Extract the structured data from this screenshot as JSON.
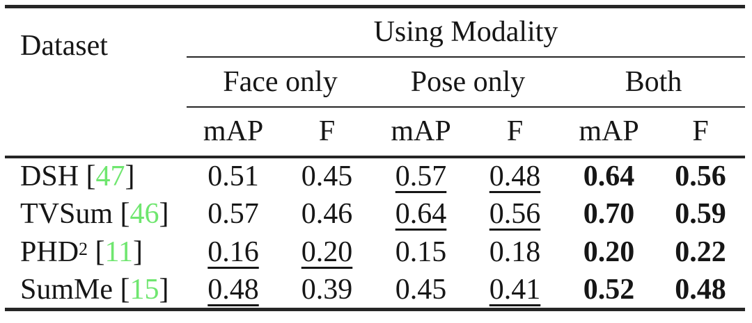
{
  "table": {
    "columns": {
      "dataset_header": "Dataset",
      "modality_header": "Using Modality",
      "groups": [
        {
          "label": "Face only"
        },
        {
          "label": "Pose only"
        },
        {
          "label": "Both"
        }
      ],
      "metrics": [
        "mAP",
        "F",
        "mAP",
        "F",
        "mAP",
        "F"
      ]
    },
    "punctuation": {
      "cite_open": " [",
      "cite_close": "]"
    },
    "rows": [
      {
        "dataset": "DSH",
        "superscript": "",
        "citation": "47",
        "cells": [
          {
            "value": "0.51",
            "emphasis": "none"
          },
          {
            "value": "0.45",
            "emphasis": "none"
          },
          {
            "value": "0.57",
            "emphasis": "underline"
          },
          {
            "value": "0.48",
            "emphasis": "underline"
          },
          {
            "value": "0.64",
            "emphasis": "bold"
          },
          {
            "value": "0.56",
            "emphasis": "bold"
          }
        ]
      },
      {
        "dataset": "TVSum",
        "superscript": "",
        "citation": "46",
        "cells": [
          {
            "value": "0.57",
            "emphasis": "none"
          },
          {
            "value": "0.46",
            "emphasis": "none"
          },
          {
            "value": "0.64",
            "emphasis": "underline"
          },
          {
            "value": "0.56",
            "emphasis": "underline"
          },
          {
            "value": "0.70",
            "emphasis": "bold"
          },
          {
            "value": "0.59",
            "emphasis": "bold"
          }
        ]
      },
      {
        "dataset": "PHD",
        "superscript": "2",
        "citation": "11",
        "cells": [
          {
            "value": "0.16",
            "emphasis": "underline"
          },
          {
            "value": "0.20",
            "emphasis": "underline"
          },
          {
            "value": "0.15",
            "emphasis": "none"
          },
          {
            "value": "0.18",
            "emphasis": "none"
          },
          {
            "value": "0.20",
            "emphasis": "bold"
          },
          {
            "value": "0.22",
            "emphasis": "bold"
          }
        ]
      },
      {
        "dataset": "SumMe",
        "superscript": "",
        "citation": "15",
        "cells": [
          {
            "value": "0.48",
            "emphasis": "underline"
          },
          {
            "value": "0.39",
            "emphasis": "none"
          },
          {
            "value": "0.45",
            "emphasis": "none"
          },
          {
            "value": "0.41",
            "emphasis": "underline"
          },
          {
            "value": "0.52",
            "emphasis": "bold"
          },
          {
            "value": "0.48",
            "emphasis": "bold"
          }
        ]
      }
    ]
  },
  "colors": {
    "citation_green": "#6fe66f",
    "text": "#161616",
    "rule": "#262626",
    "background": "#ffffff"
  }
}
